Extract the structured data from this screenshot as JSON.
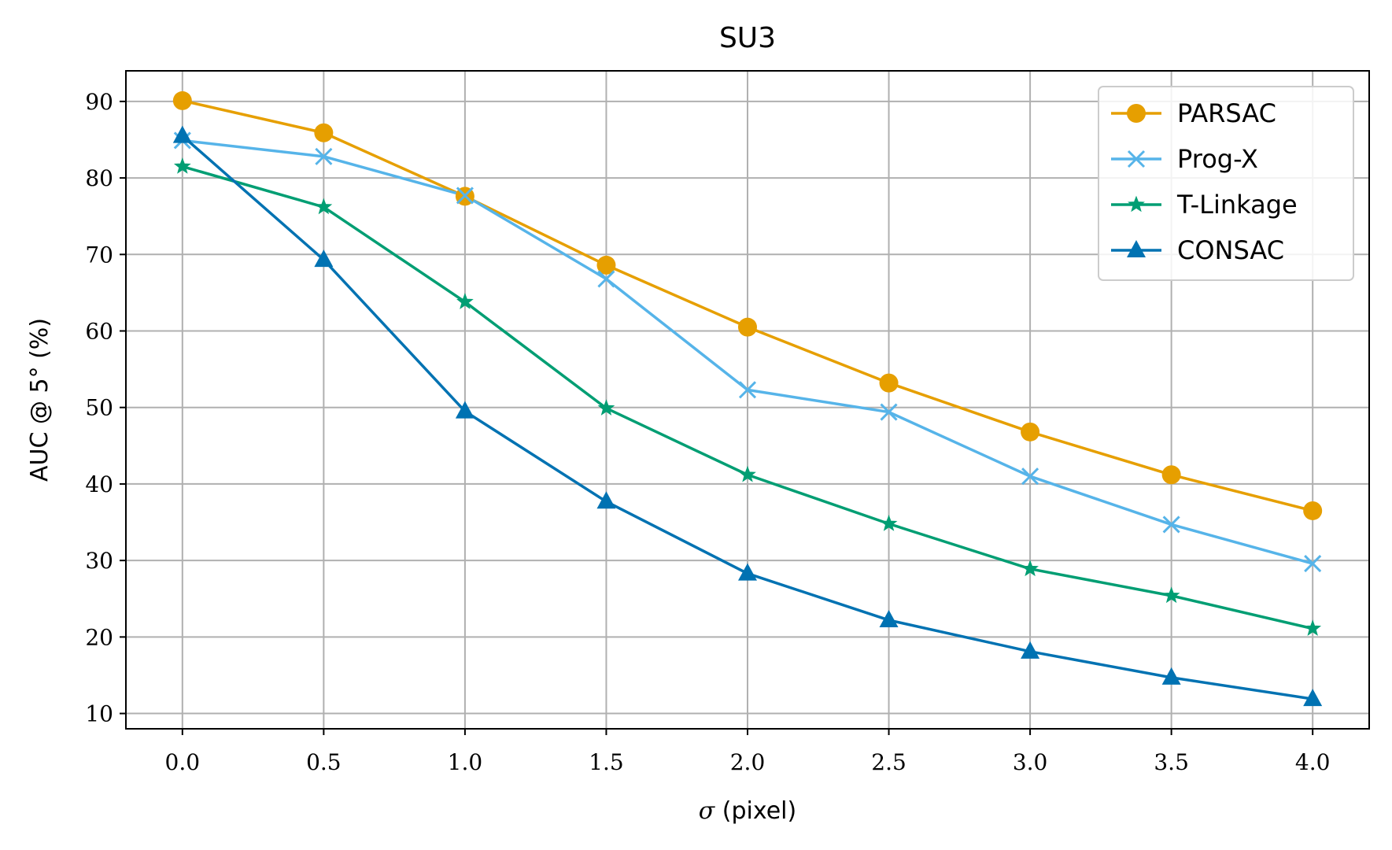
{
  "chart_data": {
    "type": "line",
    "title": "SU3",
    "xlabel_symbol": "σ",
    "xlabel_text": " (pixel)",
    "ylabel": "AUC @ 5° (%)",
    "x": [
      0.0,
      0.5,
      1.0,
      1.5,
      2.0,
      2.5,
      3.0,
      3.5,
      4.0
    ],
    "xticks": [
      "0.0",
      "0.5",
      "1.0",
      "1.5",
      "2.0",
      "2.5",
      "3.0",
      "3.5",
      "4.0"
    ],
    "yticks": [
      "10",
      "20",
      "30",
      "40",
      "50",
      "60",
      "70",
      "80",
      "90"
    ],
    "xlim": [
      -0.2,
      4.2
    ],
    "ylim": [
      8,
      94
    ],
    "grid": true,
    "legend_position": "top-right",
    "series": [
      {
        "name": "PARSAC",
        "color": "#E69F00",
        "marker": "circle",
        "values": [
          90.1,
          85.9,
          77.6,
          68.6,
          60.5,
          53.2,
          46.8,
          41.2,
          36.5
        ]
      },
      {
        "name": "Prog-X",
        "color": "#56B4E9",
        "marker": "x",
        "values": [
          84.9,
          82.8,
          77.7,
          66.8,
          52.3,
          49.4,
          41.0,
          34.7,
          29.6
        ]
      },
      {
        "name": "T-Linkage",
        "color": "#009E73",
        "marker": "star",
        "values": [
          81.5,
          76.2,
          63.8,
          49.9,
          41.2,
          34.8,
          28.9,
          25.4,
          21.1
        ]
      },
      {
        "name": "CONSAC",
        "color": "#0072B2",
        "marker": "triangle",
        "values": [
          85.5,
          69.3,
          49.5,
          37.7,
          28.3,
          22.2,
          18.1,
          14.7,
          11.9
        ]
      }
    ]
  }
}
